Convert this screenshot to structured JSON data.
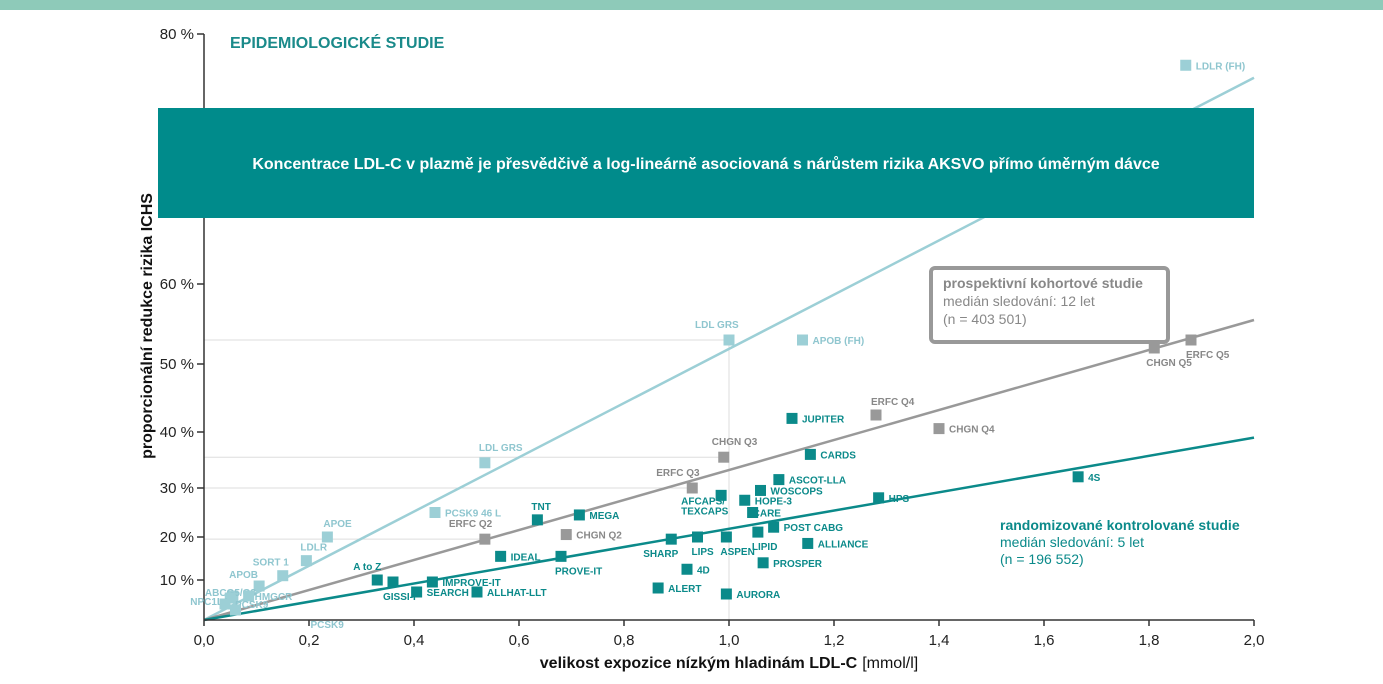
{
  "colors": {
    "teal": "#0b8a8a",
    "light": "#9ccfd6",
    "gray": "#999999",
    "gray_text": "#888888",
    "light_text": "#8fc6cf",
    "teal_text": "#0b8a8a",
    "banner": "#008b8b",
    "topbar": "#8ecab9"
  },
  "banner": {
    "text": "Koncentrace  LDL-C v plazmě je přesvědčivě a log-lineárně asociovaná s nárůstem rizika AKSVO přímo úměrným dávce"
  },
  "epi_title": "EPIDEMIOLOGICKÉ STUDIE",
  "cohort_box": {
    "title": "prospektivní kohortové studie",
    "line1": "medián sledování: 12 let",
    "line2": "(n = 403 501)"
  },
  "rct_box": {
    "title": "randomizované kontrolované studie",
    "line1": "medián sledování: 5 let",
    "line2": "(n = 196 552)"
  },
  "chart_data": {
    "type": "scatter",
    "title": "",
    "xlabel": "velikost expozice nízkým hladinám LDL-C",
    "xlabel_unit": "[mmol/l]",
    "ylabel": "proporcionální redukce rizika ICHS",
    "xlim": [
      0,
      2.0
    ],
    "y_scale": "log-linear",
    "x_ticks": [
      "0,0",
      "0,2",
      "0,4",
      "0,6",
      "0,8",
      "1,0",
      "1,2",
      "1,4",
      "1,6",
      "1,8",
      "2,0"
    ],
    "y_ticks": [
      "10 %",
      "20 %",
      "30 %",
      "40 %",
      "50 %",
      "60 %",
      "80 %"
    ],
    "lines": [
      {
        "group": "light",
        "x": [
          0,
          2.0
        ],
        "y": [
          0,
          76.5
        ]
      },
      {
        "group": "gray",
        "x": [
          0,
          2.0
        ],
        "y": [
          0,
          55.5
        ]
      },
      {
        "group": "teal",
        "x": [
          0,
          2.0
        ],
        "y": [
          0,
          39
        ]
      }
    ],
    "points": [
      {
        "label": "LDLR (FH)",
        "group": "light",
        "x": 1.87,
        "y": 77.5
      },
      {
        "label": "LDL GRS",
        "group": "light",
        "x": 1.0,
        "y": 53
      },
      {
        "label": "APOB (FH)",
        "group": "light",
        "x": 1.14,
        "y": 53
      },
      {
        "label": "LDL GRS",
        "group": "light",
        "x": 0.535,
        "y": 34.5
      },
      {
        "label": "PCSK9 46 L",
        "group": "light",
        "x": 0.44,
        "y": 25
      },
      {
        "label": "APOE",
        "group": "light",
        "x": 0.235,
        "y": 20
      },
      {
        "label": "LDLR",
        "group": "light",
        "x": 0.195,
        "y": 14.5
      },
      {
        "label": "SORT 1",
        "group": "light",
        "x": 0.15,
        "y": 11
      },
      {
        "label": "APOB",
        "group": "light",
        "x": 0.105,
        "y": 8.5
      },
      {
        "label": "ABCG5/G8",
        "group": "light",
        "x": 0.055,
        "y": 6
      },
      {
        "label": "NPC1L1",
        "group": "light",
        "x": 0.05,
        "y": 5.5
      },
      {
        "label": "HMGCR",
        "group": "light",
        "x": 0.085,
        "y": 6
      },
      {
        "label": "PCSK9",
        "group": "light",
        "x": 0.04,
        "y": 4
      },
      {
        "label": "PCSK9",
        "group": "light",
        "x": 0.06,
        "y": 2.5
      },
      {
        "label": "CHGN Q5",
        "group": "gray",
        "x": 1.81,
        "y": 52
      },
      {
        "label": "ERFC Q5",
        "group": "gray",
        "x": 1.88,
        "y": 53
      },
      {
        "label": "ERFC Q4",
        "group": "gray",
        "x": 1.28,
        "y": 42.5
      },
      {
        "label": "CHGN Q4",
        "group": "gray",
        "x": 1.4,
        "y": 40.5
      },
      {
        "label": "CHGN Q3",
        "group": "gray",
        "x": 0.99,
        "y": 35.5
      },
      {
        "label": "ERFC Q3",
        "group": "gray",
        "x": 0.93,
        "y": 30
      },
      {
        "label": "ERFC Q2",
        "group": "gray",
        "x": 0.535,
        "y": 19.5
      },
      {
        "label": "CHGN Q2",
        "group": "gray",
        "x": 0.69,
        "y": 20.5
      },
      {
        "label": "4S",
        "group": "teal",
        "x": 1.665,
        "y": 32
      },
      {
        "label": "JUPITER",
        "group": "teal",
        "x": 1.12,
        "y": 42
      },
      {
        "label": "CARDS",
        "group": "teal",
        "x": 1.155,
        "y": 36
      },
      {
        "label": "ASCOT-LLA",
        "group": "teal",
        "x": 1.095,
        "y": 31.5
      },
      {
        "label": "WOSCOPS",
        "group": "teal",
        "x": 1.06,
        "y": 29.5
      },
      {
        "label": "HOPE-3",
        "group": "teal",
        "x": 1.03,
        "y": 27.5
      },
      {
        "label": "CARE",
        "group": "teal",
        "x": 1.045,
        "y": 25
      },
      {
        "label": "AFCAPS/TEXCAPS",
        "group": "teal",
        "x": 0.985,
        "y": 28.5
      },
      {
        "label": "POST CABG",
        "group": "teal",
        "x": 1.085,
        "y": 22
      },
      {
        "label": "LIPID",
        "group": "teal",
        "x": 1.055,
        "y": 21
      },
      {
        "label": "HPS",
        "group": "teal",
        "x": 1.285,
        "y": 28
      },
      {
        "label": "ALLIANCE",
        "group": "teal",
        "x": 1.15,
        "y": 18.5
      },
      {
        "label": "PROSPER",
        "group": "teal",
        "x": 1.065,
        "y": 14
      },
      {
        "label": "ASPEN",
        "group": "teal",
        "x": 0.995,
        "y": 20
      },
      {
        "label": "LIPS",
        "group": "teal",
        "x": 0.94,
        "y": 20
      },
      {
        "label": "SHARP",
        "group": "teal",
        "x": 0.89,
        "y": 19.5
      },
      {
        "label": "4D",
        "group": "teal",
        "x": 0.92,
        "y": 12.5
      },
      {
        "label": "ALERT",
        "group": "teal",
        "x": 0.865,
        "y": 8
      },
      {
        "label": "AURORA",
        "group": "teal",
        "x": 0.995,
        "y": 6.5
      },
      {
        "label": "TNT",
        "group": "teal",
        "x": 0.635,
        "y": 23.5
      },
      {
        "label": "MEGA",
        "group": "teal",
        "x": 0.715,
        "y": 24.5
      },
      {
        "label": "PROVE-IT",
        "group": "teal",
        "x": 0.68,
        "y": 15.5
      },
      {
        "label": "IDEAL",
        "group": "teal",
        "x": 0.565,
        "y": 15.5
      },
      {
        "label": "A to Z",
        "group": "teal",
        "x": 0.33,
        "y": 10
      },
      {
        "label": "GISSI-P",
        "group": "teal",
        "x": 0.36,
        "y": 9.5
      },
      {
        "label": "IMPROVE-IT",
        "group": "teal",
        "x": 0.435,
        "y": 9.5
      },
      {
        "label": "SEARCH",
        "group": "teal",
        "x": 0.405,
        "y": 7
      },
      {
        "label": "ALLHAT-LLT",
        "group": "teal",
        "x": 0.52,
        "y": 7
      }
    ]
  }
}
